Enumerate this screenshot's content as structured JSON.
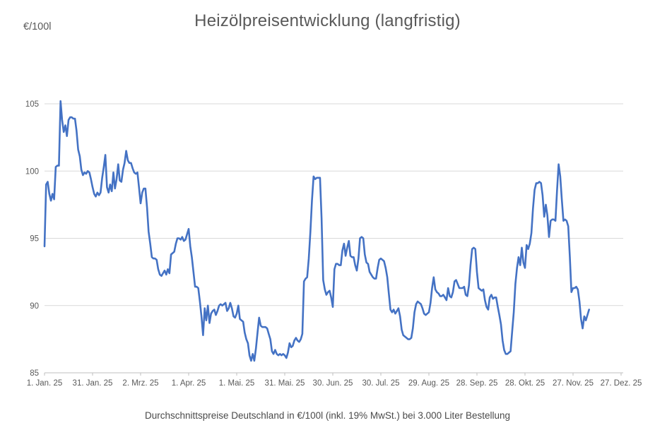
{
  "chart_data": {
    "type": "line",
    "title": "Heizölpreisentwicklung (langfristig)",
    "subtitle": "Durchschnittspreise Deutschland in €/100l (inkl. 19% MwSt.) bei 3.000 Liter Bestellung",
    "y_axis_label": "€/100l",
    "xlabel": "",
    "ylabel": "€/100l",
    "ylim": [
      85,
      105
    ],
    "y_ticks": [
      85,
      90,
      95,
      100,
      105
    ],
    "x_tick_labels": [
      "1. Jan. 25",
      "31. Jan. 25",
      "2. Mrz. 25",
      "1. Apr. 25",
      "1. Mai. 25",
      "31. Mai. 25",
      "30. Jun. 25",
      "30. Jul. 25",
      "29. Aug. 25",
      "28. Sep. 25",
      "28. Okt. 25",
      "27. Nov. 25",
      "27. Dez. 25"
    ],
    "x_tick_interval_days": 30,
    "x_unit": "days since 1. Jan. 25, one value per day",
    "grid": true,
    "legend_position": "none",
    "line_color": "#4472C4",
    "grid_color": "#d9d9d9",
    "axis_color": "#bfbfbf",
    "text_color": "#595959",
    "series": [
      {
        "x_start_day": 0,
        "x_step_days": 1,
        "values": [
          94.4,
          99.0,
          99.2,
          98.3,
          97.8,
          98.3,
          97.9,
          100.3,
          100.4,
          100.4,
          105.2,
          103.8,
          102.9,
          103.4,
          102.6,
          103.8,
          104.0,
          104.0,
          103.9,
          103.9,
          103.0,
          101.6,
          101.1,
          100.1,
          99.7,
          99.9,
          99.8,
          100.0,
          99.9,
          99.4,
          98.8,
          98.3,
          98.1,
          98.4,
          98.2,
          98.4,
          99.5,
          100.3,
          101.2,
          98.8,
          98.4,
          99.0,
          98.5,
          99.9,
          98.7,
          99.4,
          100.5,
          99.3,
          99.2,
          100.1,
          100.6,
          101.5,
          100.8,
          100.6,
          100.6,
          100.2,
          99.9,
          99.8,
          99.9,
          98.8,
          97.6,
          98.4,
          98.7,
          98.7,
          97.3,
          95.5,
          94.6,
          93.6,
          93.5,
          93.5,
          93.4,
          92.7,
          92.3,
          92.2,
          92.4,
          92.6,
          92.3,
          92.7,
          92.4,
          93.8,
          93.9,
          94.0,
          94.6,
          95.0,
          95.0,
          94.9,
          95.1,
          94.8,
          94.9,
          95.3,
          95.7,
          94.4,
          93.6,
          92.5,
          91.4,
          91.4,
          91.3,
          90.3,
          89.2,
          87.8,
          89.8,
          88.9,
          90.0,
          88.7,
          89.4,
          89.6,
          89.7,
          89.3,
          89.6,
          90.0,
          90.1,
          90.0,
          90.1,
          90.2,
          89.6,
          89.8,
          90.2,
          89.8,
          89.2,
          89.1,
          89.4,
          90.0,
          89.0,
          88.9,
          88.8,
          88.0,
          87.5,
          87.2,
          86.3,
          85.9,
          86.4,
          85.9,
          86.8,
          88.0,
          89.1,
          88.5,
          88.4,
          88.4,
          88.4,
          88.3,
          87.9,
          87.5,
          86.6,
          86.4,
          86.7,
          86.4,
          86.3,
          86.4,
          86.3,
          86.4,
          86.3,
          86.1,
          86.5,
          87.2,
          86.9,
          87.0,
          87.4,
          87.6,
          87.4,
          87.3,
          87.5,
          87.9,
          91.8,
          92.0,
          92.1,
          93.5,
          95.5,
          97.8,
          99.6,
          99.4,
          99.5,
          99.5,
          99.5,
          96.5,
          91.9,
          91.2,
          90.8,
          91.0,
          91.1,
          90.6,
          89.9,
          92.7,
          93.1,
          93.1,
          93.0,
          93.0,
          94.1,
          94.6,
          93.7,
          94.3,
          94.8,
          93.7,
          93.6,
          93.6,
          93.0,
          92.6,
          93.5,
          95.0,
          95.1,
          95.0,
          93.8,
          93.2,
          93.1,
          92.5,
          92.3,
          92.1,
          92.0,
          92.0,
          92.8,
          93.4,
          93.5,
          93.4,
          93.3,
          92.8,
          92.1,
          90.9,
          89.7,
          89.5,
          89.7,
          89.4,
          89.6,
          89.8,
          89.2,
          88.2,
          87.8,
          87.7,
          87.6,
          87.5,
          87.5,
          87.6,
          88.3,
          89.5,
          90.1,
          90.3,
          90.2,
          90.1,
          89.8,
          89.4,
          89.3,
          89.4,
          89.5,
          90.2,
          91.3,
          92.1,
          91.2,
          91.0,
          90.9,
          90.7,
          90.7,
          90.8,
          90.6,
          90.4,
          91.3,
          90.7,
          90.6,
          91.0,
          91.8,
          91.9,
          91.6,
          91.3,
          91.3,
          91.3,
          91.4,
          90.8,
          90.7,
          91.5,
          93.0,
          94.2,
          94.3,
          94.2,
          92.5,
          91.3,
          91.2,
          91.1,
          91.2,
          90.4,
          89.9,
          89.7,
          90.6,
          90.8,
          90.5,
          90.6,
          90.6,
          89.9,
          89.3,
          88.6,
          87.4,
          86.7,
          86.4,
          86.4,
          86.5,
          86.6,
          88.1,
          89.5,
          91.6,
          92.8,
          93.6,
          93.0,
          94.3,
          93.2,
          92.8,
          94.5,
          94.2,
          94.6,
          95.4,
          97.2,
          98.6,
          99.1,
          99.1,
          99.2,
          99.1,
          98.2,
          96.6,
          97.5,
          96.7,
          95.1,
          96.3,
          96.4,
          96.4,
          96.3,
          98.5,
          100.5,
          99.6,
          97.9,
          96.3,
          96.4,
          96.3,
          95.9,
          93.6,
          91.0,
          91.3,
          91.3,
          91.4,
          91.2,
          90.3,
          89.0,
          88.3,
          89.2,
          88.9,
          89.3,
          89.7
        ]
      }
    ]
  }
}
